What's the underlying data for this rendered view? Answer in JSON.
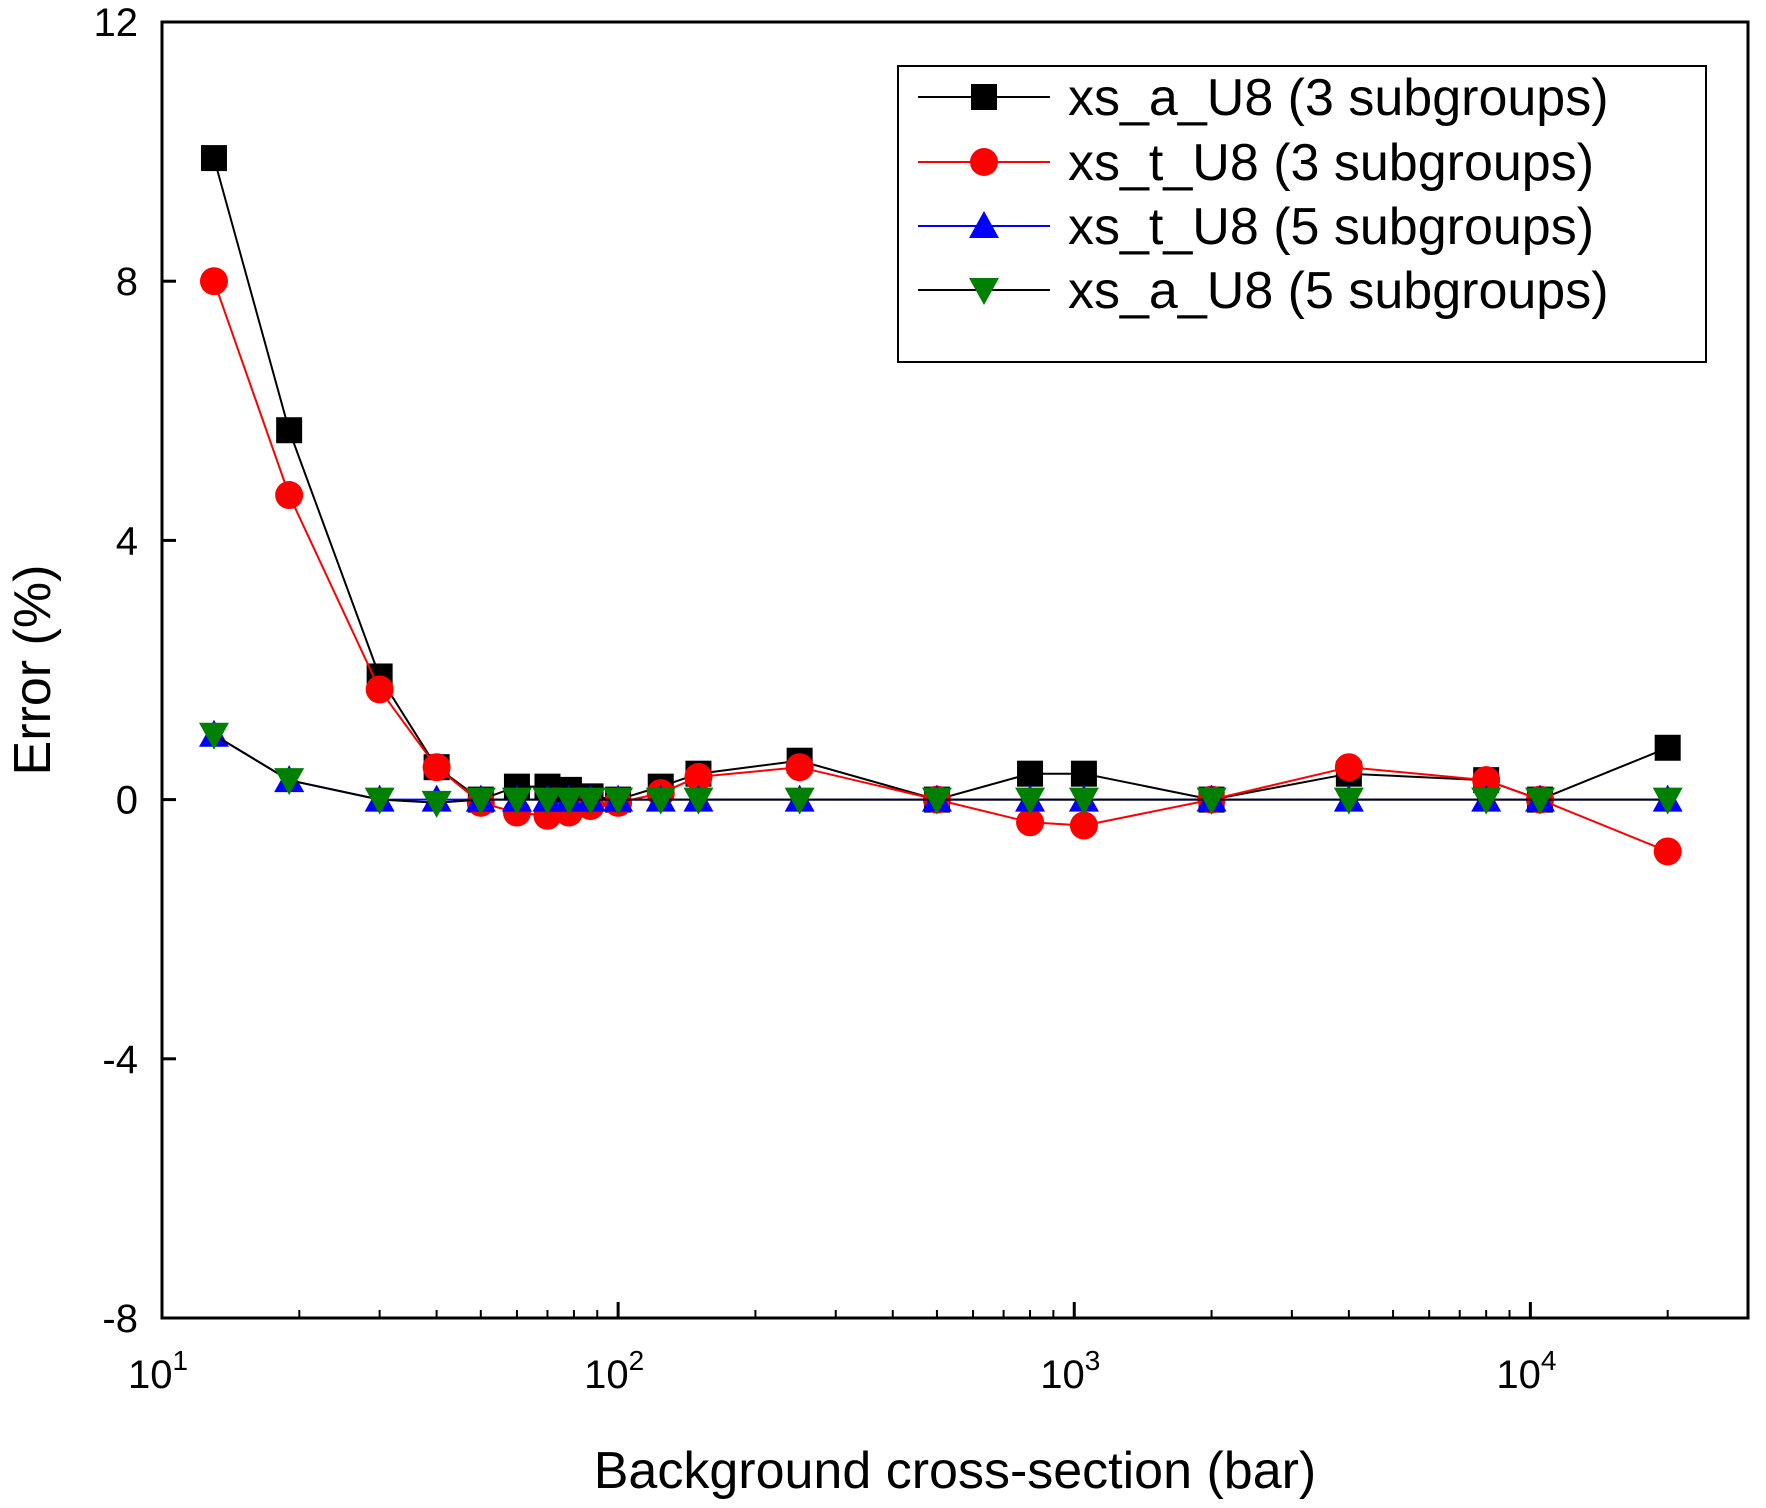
{
  "chart_data": {
    "type": "line",
    "title": "",
    "xlabel": "Background cross-section (bar)",
    "ylabel": "Error (%)",
    "xscale": "log",
    "xlim": [
      10,
      30000
    ],
    "ylim": [
      -8,
      12
    ],
    "x_ticks": [
      {
        "value": 10,
        "base": "10",
        "exp": "1"
      },
      {
        "value": 100,
        "base": "10",
        "exp": "2"
      },
      {
        "value": 1000,
        "base": "10",
        "exp": "3"
      },
      {
        "value": 10000,
        "base": "10",
        "exp": "4"
      }
    ],
    "y_ticks": [
      {
        "value": 12,
        "label": "12"
      },
      {
        "value": 8,
        "label": "8"
      },
      {
        "value": 4,
        "label": "4"
      },
      {
        "value": 0,
        "label": "0"
      },
      {
        "value": -4,
        "label": "-4"
      },
      {
        "value": -8,
        "label": "-8"
      }
    ],
    "grid": false,
    "legend_position": "top-right",
    "series": [
      {
        "name": "xs_a_U8 (3 subgroups)",
        "color": "#000000",
        "marker": "square",
        "marker_color": "#000000",
        "x": [
          13,
          19,
          30,
          40,
          50,
          60,
          70,
          78,
          87,
          100,
          124,
          150,
          250,
          500,
          800,
          1050,
          2000,
          4000,
          8000,
          10500,
          20000
        ],
        "y": [
          9.9,
          5.7,
          1.9,
          0.5,
          0.0,
          0.2,
          0.2,
          0.15,
          0.05,
          0.0,
          0.2,
          0.4,
          0.6,
          0.0,
          0.4,
          0.4,
          0.0,
          0.4,
          0.3,
          0.0,
          0.8
        ]
      },
      {
        "name": "xs_t_U8 (3 subgroups)",
        "color": "#ff0000",
        "marker": "circle",
        "marker_color": "#ff0000",
        "x": [
          13,
          19,
          30,
          40,
          50,
          60,
          70,
          78,
          87,
          100,
          124,
          150,
          250,
          500,
          800,
          1050,
          2000,
          4000,
          8000,
          10500,
          20000
        ],
        "y": [
          8.0,
          4.7,
          1.7,
          0.5,
          -0.05,
          -0.2,
          -0.25,
          -0.2,
          -0.1,
          -0.05,
          0.1,
          0.35,
          0.5,
          0.0,
          -0.35,
          -0.4,
          0.0,
          0.5,
          0.3,
          0.0,
          -0.8
        ]
      },
      {
        "name": "xs_t_U8 (5 subgroups)",
        "color": "#0000ff",
        "marker": "triangle-up",
        "marker_color": "#0000ff",
        "x": [
          13,
          19,
          30,
          40,
          50,
          60,
          70,
          78,
          87,
          100,
          124,
          150,
          250,
          500,
          800,
          1050,
          2000,
          4000,
          8000,
          10500,
          20000
        ],
        "y": [
          1.0,
          0.3,
          0.0,
          0.0,
          0.0,
          0.0,
          0.0,
          0.0,
          0.0,
          0.0,
          0.0,
          0.0,
          0.0,
          0.0,
          0.0,
          0.0,
          0.0,
          0.0,
          0.0,
          0.0,
          0.0
        ]
      },
      {
        "name": "xs_a_U8 (5 subgroups)",
        "color": "#000000",
        "marker": "triangle-down",
        "marker_color": "#008000",
        "x": [
          13,
          19,
          30,
          40,
          50,
          60,
          70,
          78,
          87,
          100,
          124,
          150,
          250,
          500,
          800,
          1050,
          2000,
          4000,
          8000,
          10500,
          20000
        ],
        "y": [
          1.0,
          0.3,
          0.0,
          -0.05,
          0.0,
          0.0,
          0.0,
          0.0,
          0.0,
          0.0,
          0.0,
          0.0,
          0.0,
          0.0,
          0.0,
          0.0,
          0.0,
          0.0,
          0.0,
          0.0,
          0.0
        ]
      }
    ]
  }
}
